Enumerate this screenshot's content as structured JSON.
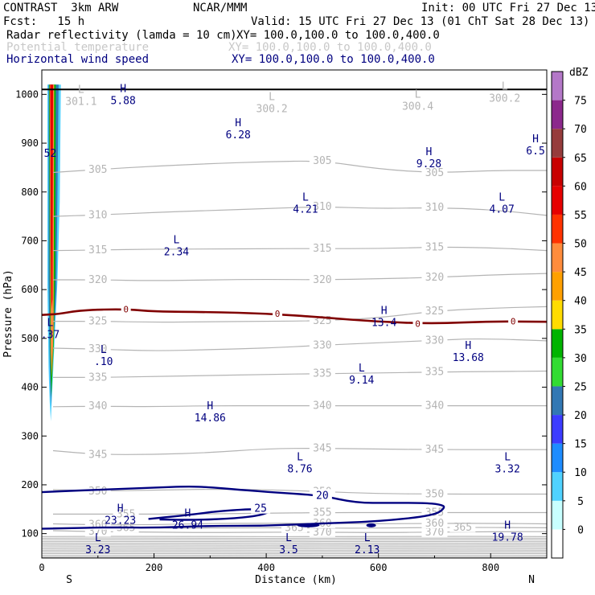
{
  "header": {
    "model": "CONTRAST  3km ARW",
    "org": "NCAR/MMM",
    "init": "Init: 00 UTC Fri 27 Dec 13",
    "fcst": "Fcst:   15 h",
    "valid": "Valid: 15 UTC Fri 27 Dec 13 (01 ChT Sat 28 Dec 13)",
    "fields": [
      {
        "name": "Radar reflectivity (lamda = 10 cm)",
        "xy": "XY= 100.0,100.0 to 100.0,400.0",
        "color": "#000000"
      },
      {
        "name": "Potential temperature",
        "xy": "XY= 100.0,100.0 to 100.0,400.0",
        "color": "#c8c8c8"
      },
      {
        "name": "Horizontal wind speed",
        "xy": "XY= 100.0,100.0 to 100.0,400.0",
        "color": "#000080"
      }
    ]
  },
  "chart_data": {
    "type": "contour-cross-section",
    "xlabel": "Distance (km)",
    "ylabel": "Pressure (hPa)",
    "xlim": [
      0,
      900
    ],
    "ylim": [
      1050,
      50
    ],
    "x_ticks": [
      0,
      200,
      400,
      600,
      800
    ],
    "y_ticks": [
      100,
      200,
      300,
      400,
      500,
      600,
      700,
      800,
      900,
      1000
    ],
    "x_end_labels": {
      "left": "S",
      "right": "N"
    },
    "colorbar": {
      "unit": "dBZ",
      "levels": [
        0,
        5,
        10,
        15,
        20,
        25,
        30,
        35,
        40,
        45,
        50,
        55,
        60,
        65,
        70,
        75
      ],
      "colors": [
        "#ffffff",
        "#c8ffff",
        "#50d2ff",
        "#1e8cff",
        "#3c3cff",
        "#3278b4",
        "#32dc32",
        "#00b400",
        "#ffdc00",
        "#ffa000",
        "#ff8c3c",
        "#ff3200",
        "#e60000",
        "#c80000",
        "#963c3c",
        "#8c288c",
        "#b478c8"
      ]
    },
    "theta_contours": [
      {
        "label": "370",
        "points": [
          [
            20,
            106
          ],
          [
            100,
            104
          ],
          [
            200,
            103
          ],
          [
            300,
            102
          ],
          [
            400,
            103
          ],
          [
            500,
            103
          ],
          [
            600,
            102
          ],
          [
            700,
            103
          ],
          [
            820,
            104
          ],
          [
            900,
            104
          ]
        ]
      },
      {
        "label": "365",
        "points": [
          [
            20,
            112
          ],
          [
            150,
            112
          ],
          [
            250,
            111
          ],
          [
            350,
            112
          ],
          [
            450,
            112
          ],
          [
            550,
            111
          ],
          [
            650,
            112
          ],
          [
            750,
            113
          ],
          [
            900,
            112
          ]
        ]
      },
      {
        "label": "360",
        "points": [
          [
            20,
            120
          ],
          [
            100,
            118
          ],
          [
            200,
            118
          ],
          [
            300,
            121
          ],
          [
            400,
            121
          ],
          [
            500,
            121
          ],
          [
            600,
            120
          ],
          [
            700,
            121
          ],
          [
            800,
            121
          ],
          [
            900,
            120
          ]
        ]
      },
      {
        "label": "355",
        "points": [
          [
            20,
            140
          ],
          [
            150,
            140
          ],
          [
            250,
            140
          ],
          [
            340,
            141
          ],
          [
            400,
            142
          ],
          [
            500,
            143
          ],
          [
            600,
            143
          ],
          [
            700,
            143
          ],
          [
            800,
            143
          ],
          [
            900,
            143
          ]
        ]
      },
      {
        "label": "350",
        "points": [
          [
            20,
            190
          ],
          [
            100,
            187
          ],
          [
            200,
            189
          ],
          [
            300,
            191
          ],
          [
            400,
            190
          ],
          [
            500,
            186
          ],
          [
            600,
            182
          ],
          [
            700,
            181
          ],
          [
            800,
            181
          ],
          [
            900,
            181
          ]
        ]
      },
      {
        "label": "345",
        "points": [
          [
            20,
            270
          ],
          [
            100,
            262
          ],
          [
            200,
            262
          ],
          [
            300,
            266
          ],
          [
            400,
            274
          ],
          [
            500,
            275
          ],
          [
            600,
            273
          ],
          [
            700,
            272
          ],
          [
            800,
            272
          ],
          [
            900,
            272
          ]
        ]
      },
      {
        "label": "340",
        "points": [
          [
            20,
            360
          ],
          [
            100,
            361
          ],
          [
            200,
            360
          ],
          [
            300,
            362
          ],
          [
            400,
            362
          ],
          [
            500,
            362
          ],
          [
            600,
            362
          ],
          [
            700,
            362
          ],
          [
            800,
            362
          ],
          [
            900,
            362
          ]
        ]
      },
      {
        "label": "335",
        "points": [
          [
            20,
            420
          ],
          [
            100,
            420
          ],
          [
            200,
            422
          ],
          [
            300,
            424
          ],
          [
            400,
            426
          ],
          [
            500,
            428
          ],
          [
            600,
            429
          ],
          [
            700,
            431
          ],
          [
            800,
            432
          ],
          [
            900,
            433
          ]
        ]
      },
      {
        "label": "330",
        "points": [
          [
            20,
            480
          ],
          [
            100,
            478
          ],
          [
            200,
            474
          ],
          [
            300,
            477
          ],
          [
            400,
            480
          ],
          [
            500,
            486
          ],
          [
            600,
            491
          ],
          [
            700,
            496
          ],
          [
            780,
            500
          ],
          [
            900,
            495
          ]
        ]
      },
      {
        "label": "325",
        "points": [
          [
            20,
            535
          ],
          [
            100,
            535
          ],
          [
            200,
            533
          ],
          [
            300,
            534
          ],
          [
            400,
            535
          ],
          [
            500,
            536
          ],
          [
            600,
            542
          ],
          [
            700,
            556
          ],
          [
            800,
            562
          ],
          [
            900,
            565
          ]
        ]
      },
      {
        "label": "320",
        "points": [
          [
            20,
            620
          ],
          [
            100,
            620
          ],
          [
            200,
            618
          ],
          [
            300,
            620
          ],
          [
            400,
            621
          ],
          [
            500,
            620
          ],
          [
            600,
            622
          ],
          [
            700,
            625
          ],
          [
            800,
            630
          ],
          [
            900,
            633
          ]
        ]
      },
      {
        "label": "315",
        "points": [
          [
            20,
            680
          ],
          [
            100,
            681
          ],
          [
            200,
            683
          ],
          [
            300,
            683
          ],
          [
            400,
            684
          ],
          [
            500,
            684
          ],
          [
            600,
            684
          ],
          [
            700,
            687
          ],
          [
            800,
            686
          ],
          [
            900,
            680
          ]
        ]
      },
      {
        "label": "310",
        "points": [
          [
            20,
            750
          ],
          [
            100,
            753
          ],
          [
            200,
            758
          ],
          [
            300,
            762
          ],
          [
            400,
            766
          ],
          [
            500,
            770
          ],
          [
            600,
            766
          ],
          [
            700,
            768
          ],
          [
            800,
            764
          ],
          [
            900,
            752
          ]
        ]
      },
      {
        "label": "305",
        "points": [
          [
            20,
            840
          ],
          [
            100,
            846
          ],
          [
            200,
            853
          ],
          [
            300,
            858
          ],
          [
            400,
            862
          ],
          [
            500,
            864
          ],
          [
            600,
            847
          ],
          [
            700,
            839
          ],
          [
            800,
            844
          ],
          [
            900,
            844
          ]
        ]
      }
    ],
    "wind_contours": [
      {
        "label": "20",
        "points": [
          [
            0,
            185
          ],
          [
            100,
            190
          ],
          [
            200,
            194
          ],
          [
            260,
            197
          ],
          [
            300,
            195
          ],
          [
            350,
            190
          ],
          [
            420,
            184
          ],
          [
            500,
            178
          ],
          [
            560,
            163
          ],
          [
            620,
            163
          ],
          [
            680,
            163
          ],
          [
            710,
            160
          ],
          [
            720,
            154
          ],
          [
            700,
            137
          ],
          [
            600,
            125
          ],
          [
            500,
            121
          ],
          [
            400,
            116
          ],
          [
            300,
            116
          ],
          [
            200,
            112
          ],
          [
            120,
            113
          ],
          [
            40,
            111
          ],
          [
            0,
            110
          ]
        ]
      },
      {
        "label": "25",
        "points": [
          [
            190,
            130
          ],
          [
            260,
            138
          ],
          [
            320,
            147
          ],
          [
            390,
            151
          ],
          [
            410,
            146
          ],
          [
            385,
            136
          ],
          [
            330,
            130
          ],
          [
            270,
            128
          ],
          [
            210,
            129
          ]
        ]
      }
    ],
    "zero_contour": {
      "label": "0",
      "points": [
        [
          0,
          548
        ],
        [
          30,
          550
        ],
        [
          70,
          558
        ],
        [
          150,
          560
        ],
        [
          200,
          555
        ],
        [
          300,
          554
        ],
        [
          400,
          551
        ],
        [
          500,
          543
        ],
        [
          600,
          534
        ],
        [
          700,
          530
        ],
        [
          800,
          535
        ],
        [
          900,
          534
        ]
      ]
    },
    "reflectivity_core": [
      {
        "dbz": 5,
        "points": [
          [
            10,
            1020
          ],
          [
            10,
            600
          ],
          [
            12,
            440
          ],
          [
            14,
            370
          ],
          [
            16,
            330
          ],
          [
            18,
            380
          ],
          [
            22,
            480
          ],
          [
            28,
            620
          ],
          [
            32,
            780
          ],
          [
            34,
            1020
          ]
        ]
      },
      {
        "dbz": 20,
        "points": [
          [
            12,
            1020
          ],
          [
            12,
            620
          ],
          [
            14,
            450
          ],
          [
            16,
            360
          ],
          [
            20,
            470
          ],
          [
            26,
            600
          ],
          [
            28,
            800
          ],
          [
            30,
            1020
          ]
        ]
      },
      {
        "dbz": 30,
        "points": [
          [
            13,
            1020
          ],
          [
            14,
            650
          ],
          [
            15,
            470
          ],
          [
            17,
            380
          ],
          [
            21,
            480
          ],
          [
            24,
            640
          ],
          [
            25,
            1020
          ]
        ]
      },
      {
        "dbz": 45,
        "points": [
          [
            14,
            1020
          ],
          [
            15,
            640
          ],
          [
            16,
            470
          ],
          [
            18,
            420
          ],
          [
            21,
            520
          ],
          [
            22,
            1020
          ]
        ]
      },
      {
        "dbz": 55,
        "points": [
          [
            15,
            1020
          ],
          [
            16,
            700
          ],
          [
            17,
            560
          ],
          [
            19,
            580
          ],
          [
            20,
            1020
          ]
        ]
      }
    ],
    "extrema": [
      {
        "type": "L",
        "value": "3.23",
        "x": 100,
        "p": 85
      },
      {
        "type": "L",
        "value": "3.5",
        "x": 440,
        "p": 85
      },
      {
        "type": "L",
        "value": "2.13",
        "x": 580,
        "p": 85
      },
      {
        "type": "H",
        "value": "19.78",
        "x": 830,
        "p": 110
      },
      {
        "type": "H",
        "value": "23.23",
        "x": 140,
        "p": 145
      },
      {
        "type": "H",
        "value": "26.94",
        "x": 260,
        "p": 135
      },
      {
        "type": "L",
        "value": "8.76",
        "x": 460,
        "p": 250
      },
      {
        "type": "L",
        "value": "3.32",
        "x": 830,
        "p": 250
      },
      {
        "type": "H",
        "value": "14.86",
        "x": 300,
        "p": 355
      },
      {
        "type": "L",
        "value": "9.14",
        "x": 570,
        "p": 432
      },
      {
        "type": "L",
        "value": ".10",
        "x": 110,
        "p": 470
      },
      {
        "type": "H",
        "value": "13.68",
        "x": 760,
        "p": 478
      },
      {
        "type": "H",
        "value": "13.4",
        "x": 610,
        "p": 550
      },
      {
        "type": "L",
        "value": ".37",
        "x": 15,
        "p": 525
      },
      {
        "type": "L",
        "value": "2.34",
        "x": 240,
        "p": 695
      },
      {
        "type": "L",
        "value": "4.21",
        "x": 470,
        "p": 782
      },
      {
        "type": "L",
        "value": "4.07",
        "x": 820,
        "p": 782
      },
      {
        "type": "H",
        "value": "9.28",
        "x": 690,
        "p": 875
      },
      {
        "type": "H",
        "value": "6.5",
        "x": 880,
        "p": 902
      },
      {
        "type": "H",
        "value": "6.28",
        "x": 350,
        "p": 935
      },
      {
        "type": "H",
        "value": "5.88",
        "x": 145,
        "p": 1005
      },
      {
        "type": "L",
        "value": "301.1",
        "x": 70,
        "p": 1003,
        "gray": true
      },
      {
        "type": "L",
        "value": "300.2",
        "x": 410,
        "p": 988,
        "gray": true
      },
      {
        "type": "L",
        "value": "300.4",
        "x": 670,
        "p": 993,
        "gray": true
      },
      {
        "type": "L",
        "value": "300.2",
        "x": 825,
        "p": 1010,
        "gray": true
      },
      {
        "type": "",
        "value": "52",
        "x": 15,
        "p": 897
      }
    ],
    "surface_line_p": 1010
  }
}
